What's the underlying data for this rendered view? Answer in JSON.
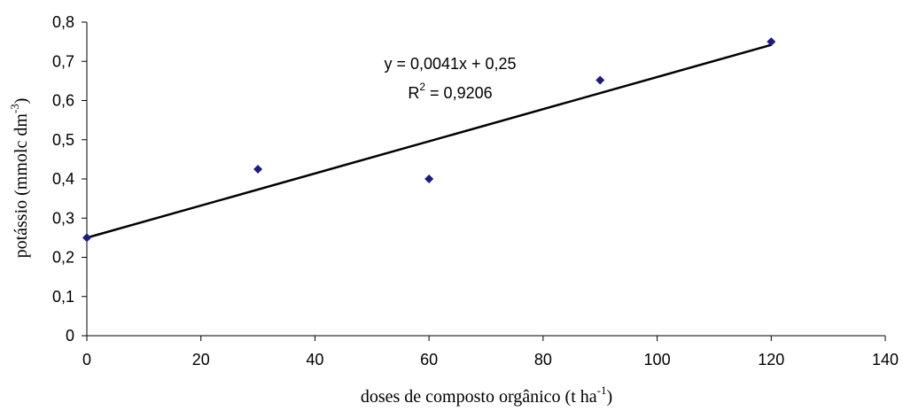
{
  "chart_data": {
    "type": "scatter",
    "title": "",
    "xlabel": "doses de composto orgânico (t ha",
    "xlabel_sup": "-1",
    "xlabel_end": ")",
    "ylabel": "potássio (mmolc dm",
    "ylabel_sup": "-3",
    "ylabel_end": ")",
    "xlim": [
      0,
      140
    ],
    "ylim": [
      0,
      0.8
    ],
    "xticks": [
      0,
      20,
      40,
      60,
      80,
      100,
      120,
      140
    ],
    "xtick_labels": [
      "0",
      "20",
      "40",
      "60",
      "80",
      "100",
      "120",
      "140"
    ],
    "yticks": [
      0,
      0.1,
      0.2,
      0.3,
      0.4,
      0.5,
      0.6,
      0.7,
      0.8
    ],
    "ytick_labels": [
      "0",
      "0,1",
      "0,2",
      "0,3",
      "0,4",
      "0,5",
      "0,6",
      "0,7",
      "0,8"
    ],
    "grid": false,
    "series": [
      {
        "x": [
          0,
          30,
          60,
          90,
          120
        ],
        "y": [
          0.25,
          0.425,
          0.4,
          0.652,
          0.75
        ],
        "color": "#1f1a80",
        "marker": "diamond"
      }
    ],
    "trendline": {
      "slope": 0.0041,
      "intercept": 0.25,
      "x_range": [
        0,
        120
      ],
      "color": "#000000"
    },
    "annotations": {
      "equation": "y = 0,0041x + 0,25",
      "r2_prefix": "R",
      "r2_sup": "2",
      "r2_value": " = 0,9206"
    }
  }
}
